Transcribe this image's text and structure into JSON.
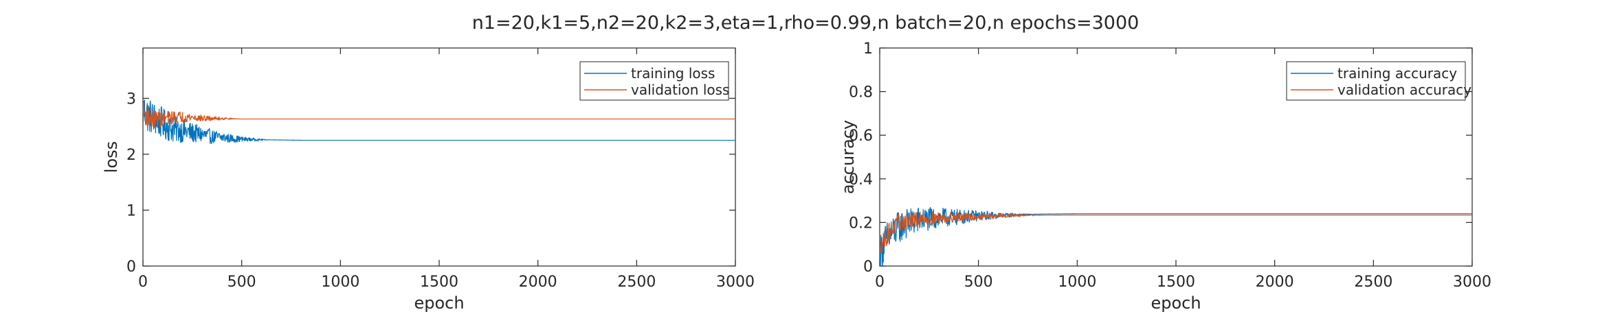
{
  "figure": {
    "title": "n1=20,k1=5,n2=20,k2=3,eta=1,rho=0.99,n batch=20,n epochs=3000"
  },
  "chart_data": [
    {
      "type": "line",
      "xlabel": "epoch",
      "ylabel": "loss",
      "xlim": [
        0,
        3000
      ],
      "ylim": [
        0,
        3.9
      ],
      "xticks": [
        0,
        500,
        1000,
        1500,
        2000,
        2500,
        3000
      ],
      "yticks": [
        0,
        1,
        2,
        3
      ],
      "grid": false,
      "legend_position": "top-right",
      "series": [
        {
          "name": "training loss",
          "color": "#0072BD",
          "noisy_until_epoch": 650,
          "x": [
            0,
            20,
            50,
            100,
            150,
            200,
            250,
            300,
            350,
            400,
            450,
            500,
            600,
            700,
            800,
            1000,
            3000
          ],
          "y": [
            2.8,
            2.72,
            2.65,
            2.55,
            2.45,
            2.42,
            2.38,
            2.35,
            2.31,
            2.3,
            2.28,
            2.27,
            2.26,
            2.255,
            2.25,
            2.25,
            2.25
          ]
        },
        {
          "name": "validation loss",
          "color": "#D95319",
          "noisy_until_epoch": 500,
          "x": [
            0,
            20,
            50,
            100,
            150,
            200,
            250,
            300,
            400,
            500,
            600,
            800,
            3000
          ],
          "y": [
            2.78,
            2.68,
            2.62,
            2.63,
            2.66,
            2.67,
            2.66,
            2.64,
            2.64,
            2.63,
            2.63,
            2.63,
            2.63
          ]
        }
      ]
    },
    {
      "type": "line",
      "xlabel": "epoch",
      "ylabel": "accuracy",
      "xlim": [
        0,
        3000
      ],
      "ylim": [
        0,
        1
      ],
      "xticks": [
        0,
        500,
        1000,
        1500,
        2000,
        2500,
        3000
      ],
      "yticks": [
        0,
        0.2,
        0.4,
        0.6,
        0.8,
        1
      ],
      "grid": false,
      "legend_position": "top-right",
      "series": [
        {
          "name": "training accuracy",
          "color": "#0072BD",
          "noisy_until_epoch": 800,
          "x": [
            0,
            20,
            50,
            100,
            150,
            200,
            300,
            400,
            500,
            600,
            700,
            800,
            1000,
            3000
          ],
          "y": [
            0.05,
            0.1,
            0.14,
            0.18,
            0.2,
            0.21,
            0.22,
            0.225,
            0.23,
            0.232,
            0.235,
            0.238,
            0.24,
            0.24
          ]
        },
        {
          "name": "validation accuracy",
          "color": "#D95319",
          "noisy_until_epoch": 850,
          "x": [
            0,
            20,
            50,
            100,
            150,
            200,
            300,
            400,
            500,
            600,
            700,
            800,
            1000,
            3000
          ],
          "y": [
            0.09,
            0.12,
            0.16,
            0.2,
            0.21,
            0.215,
            0.22,
            0.225,
            0.225,
            0.23,
            0.232,
            0.233,
            0.234,
            0.234
          ]
        }
      ]
    }
  ]
}
